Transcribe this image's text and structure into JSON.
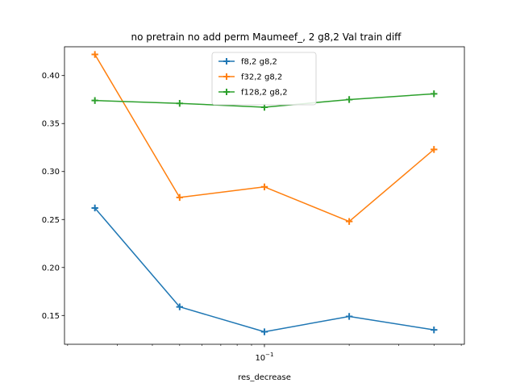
{
  "chart_data": {
    "type": "line",
    "title": "no pretrain no add perm Maumeef_, 2 g8,2 Val train diff",
    "xlabel": "res_decrease",
    "ylabel": "",
    "x_scale": "log",
    "x": [
      0.025,
      0.05,
      0.1,
      0.2,
      0.4
    ],
    "x_tick_labels": [
      {
        "value": 0.1,
        "base": "10",
        "exp": "−1"
      }
    ],
    "xlim": [
      0.0195,
      0.513
    ],
    "ylim": [
      0.12,
      0.43
    ],
    "y_ticks": [
      0.15,
      0.2,
      0.25,
      0.3,
      0.35,
      0.4
    ],
    "y_tick_labels": [
      "0.15",
      "0.20",
      "0.25",
      "0.30",
      "0.35",
      "0.40"
    ],
    "legend_position": "upper center",
    "series": [
      {
        "name": "f8,2 g8,2",
        "color": "#1f77b4",
        "values": [
          0.262,
          0.159,
          0.133,
          0.149,
          0.135
        ]
      },
      {
        "name": "f32,2 g8,2",
        "color": "#ff7f0e",
        "values": [
          0.422,
          0.273,
          0.284,
          0.248,
          0.323
        ]
      },
      {
        "name": "f128,2 g8,2",
        "color": "#2ca02c",
        "values": [
          0.374,
          0.371,
          0.367,
          0.375,
          0.381
        ]
      }
    ]
  }
}
